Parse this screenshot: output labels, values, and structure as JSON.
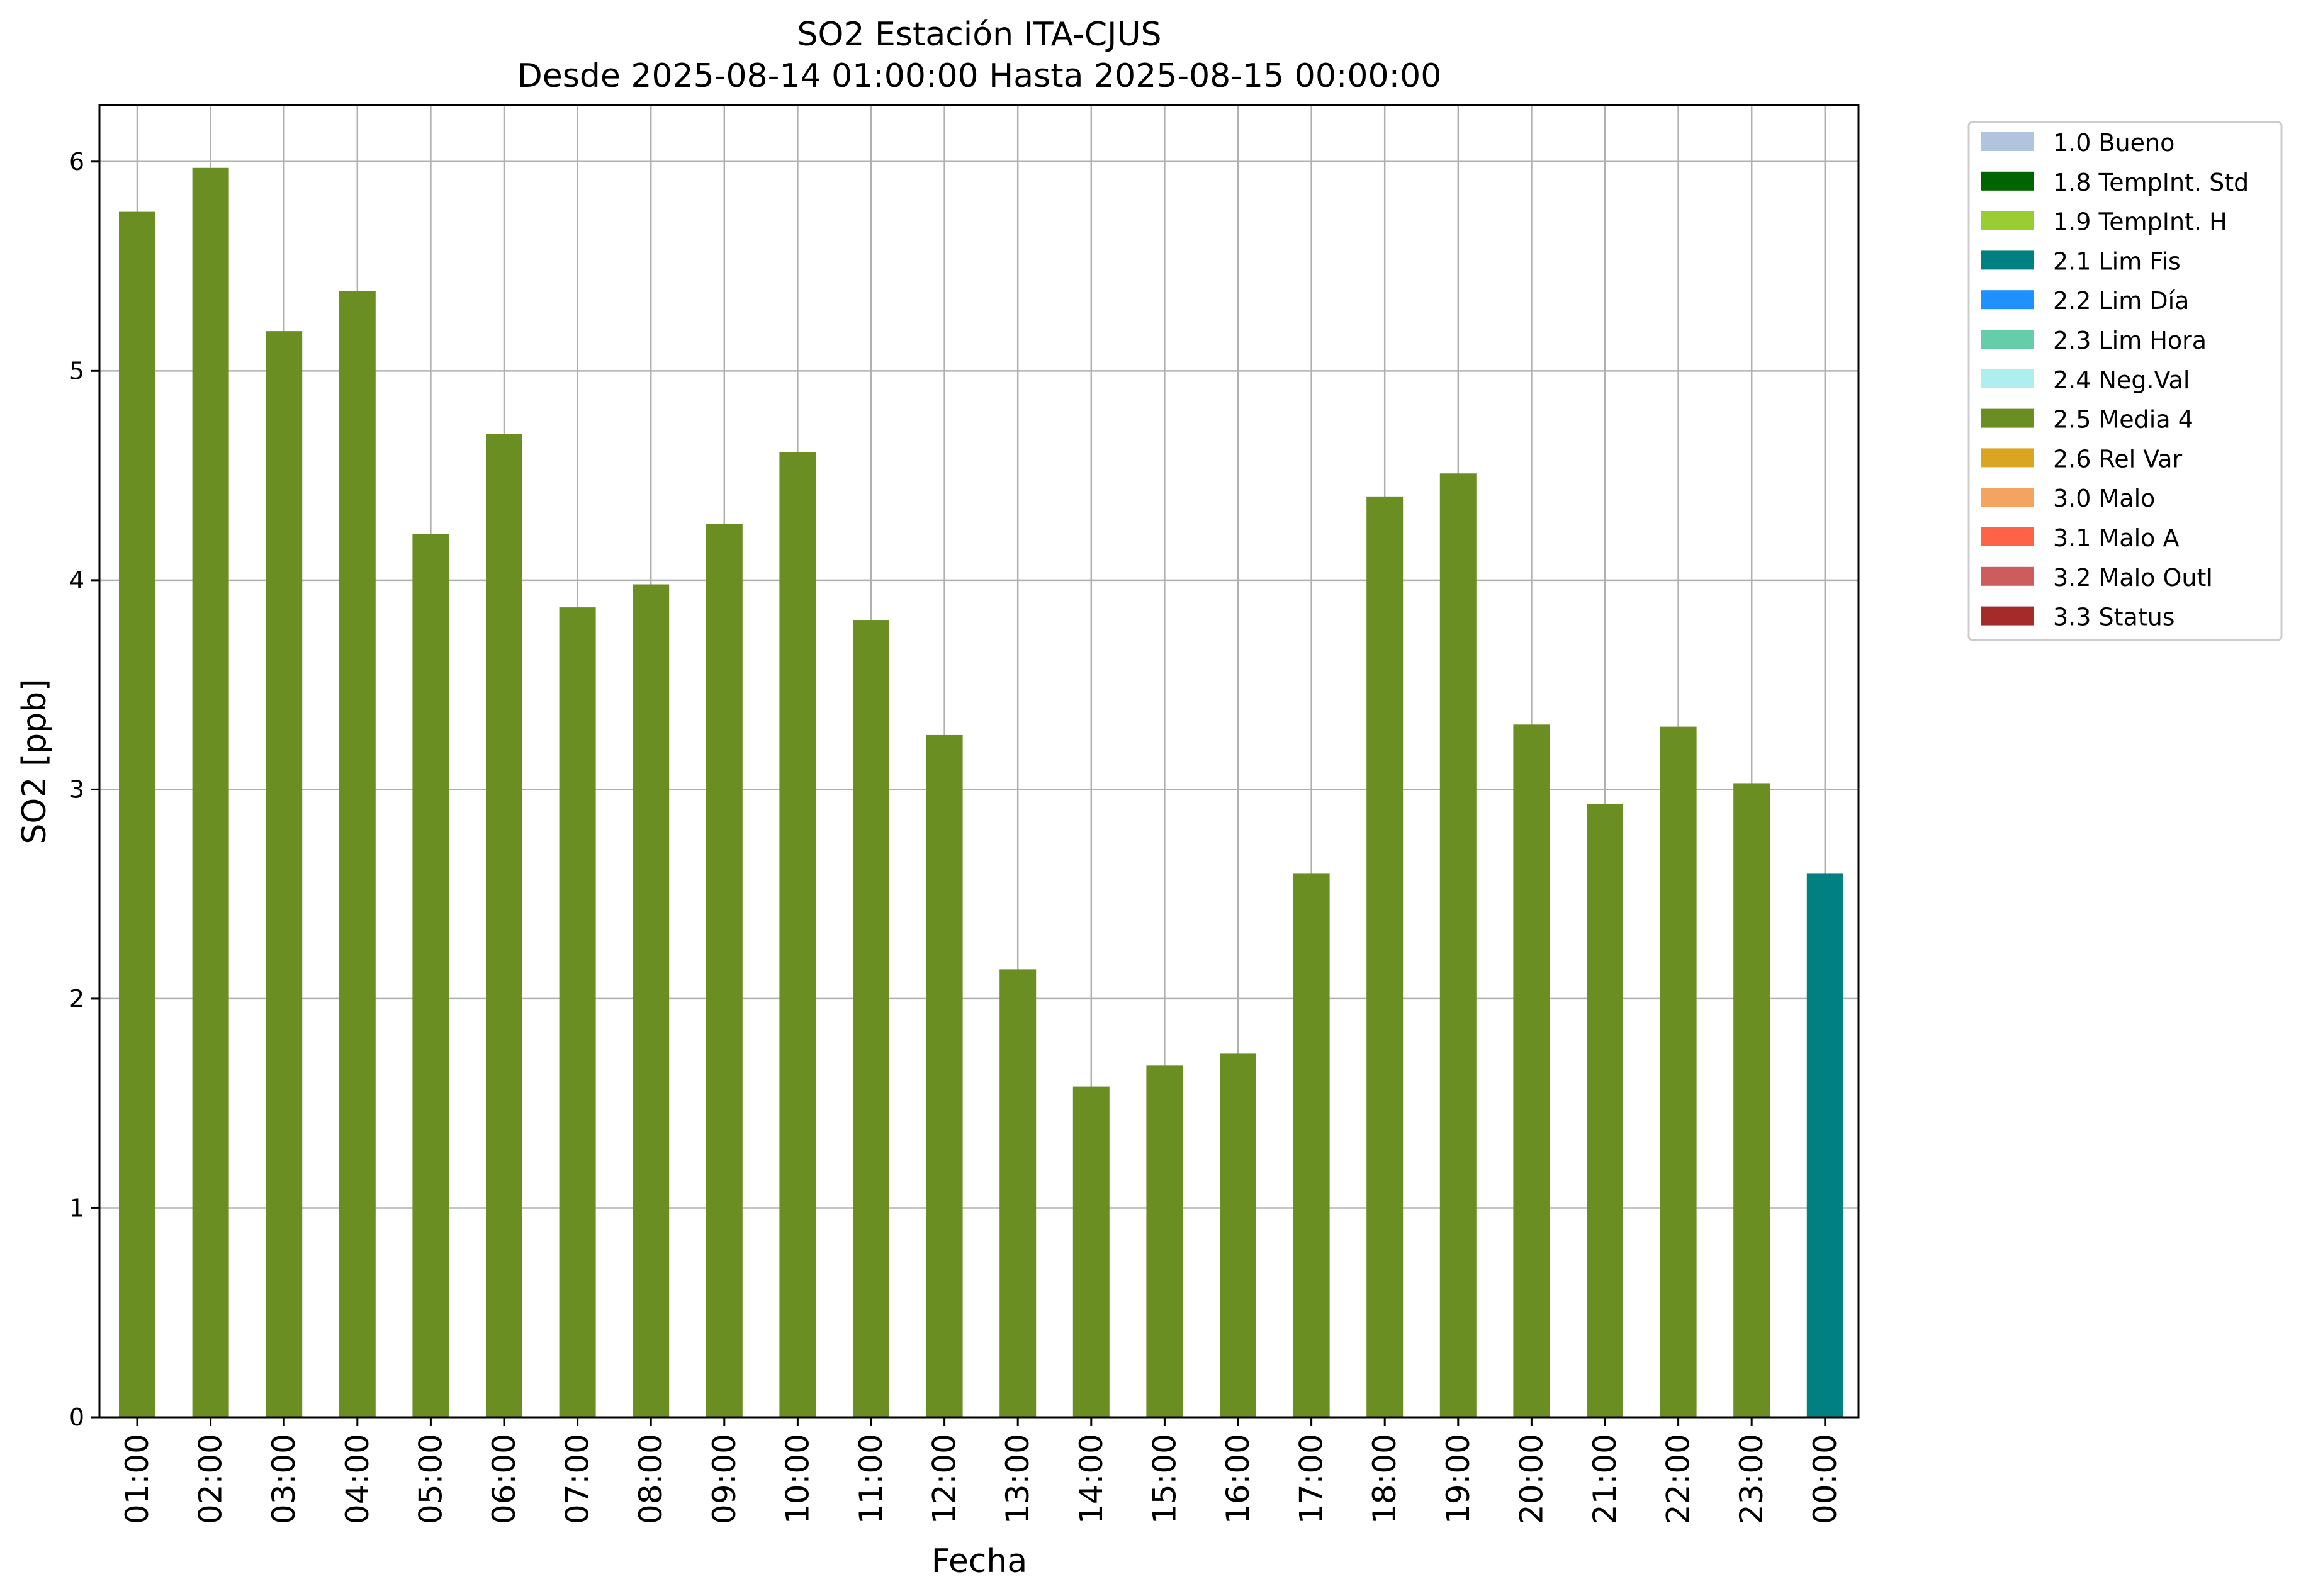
{
  "chart_data": {
    "type": "bar",
    "title": "SO2 Estación ITA-CJUS",
    "subtitle": "Desde 2025-08-14 01:00:00 Hasta 2025-08-15 00:00:00",
    "xlabel": "Fecha",
    "ylabel": "SO2 [ppb]",
    "ylim": [
      0,
      6.27
    ],
    "yticks": [
      0,
      1,
      2,
      3,
      4,
      5,
      6
    ],
    "grid": true,
    "legend_position": "outside-top-right",
    "categories": [
      "01:00",
      "02:00",
      "03:00",
      "04:00",
      "05:00",
      "06:00",
      "07:00",
      "08:00",
      "09:00",
      "10:00",
      "11:00",
      "12:00",
      "13:00",
      "14:00",
      "15:00",
      "16:00",
      "17:00",
      "18:00",
      "19:00",
      "20:00",
      "21:00",
      "22:00",
      "23:00",
      "00:00"
    ],
    "values": [
      5.76,
      5.97,
      5.19,
      5.38,
      4.22,
      4.7,
      3.87,
      3.98,
      4.27,
      4.61,
      3.81,
      3.26,
      2.14,
      1.58,
      1.68,
      1.74,
      2.6,
      4.4,
      4.51,
      3.31,
      2.93,
      3.3,
      3.03,
      2.6
    ],
    "bar_flags": [
      "2.5 Media 4",
      "2.5 Media 4",
      "2.5 Media 4",
      "2.5 Media 4",
      "2.5 Media 4",
      "2.5 Media 4",
      "2.5 Media 4",
      "2.5 Media 4",
      "2.5 Media 4",
      "2.5 Media 4",
      "2.5 Media 4",
      "2.5 Media 4",
      "2.5 Media 4",
      "2.5 Media 4",
      "2.5 Media 4",
      "2.5 Media 4",
      "2.5 Media 4",
      "2.5 Media 4",
      "2.5 Media 4",
      "2.5 Media 4",
      "2.5 Media 4",
      "2.5 Media 4",
      "2.5 Media 4",
      "2.1 Lim Fis"
    ],
    "legend": [
      {
        "label": "1.0 Bueno",
        "color": "#b0c4de"
      },
      {
        "label": "1.8 TempInt. Std",
        "color": "#006400"
      },
      {
        "label": "1.9 TempInt. H",
        "color": "#9acd32"
      },
      {
        "label": "2.1 Lim Fis",
        "color": "#008080"
      },
      {
        "label": "2.2 Lim Día",
        "color": "#1e90ff"
      },
      {
        "label": "2.3 Lim Hora",
        "color": "#66cdaa"
      },
      {
        "label": "2.4 Neg.Val",
        "color": "#afeeee"
      },
      {
        "label": "2.5 Media 4",
        "color": "#6b8e23"
      },
      {
        "label": "2.6 Rel Var",
        "color": "#daa520"
      },
      {
        "label": "3.0 Malo",
        "color": "#f4a460"
      },
      {
        "label": "3.1 Malo A",
        "color": "#ff6347"
      },
      {
        "label": "3.2 Malo Outl",
        "color": "#cd5c5c"
      },
      {
        "label": "3.3 Status",
        "color": "#a52a2a"
      }
    ]
  }
}
